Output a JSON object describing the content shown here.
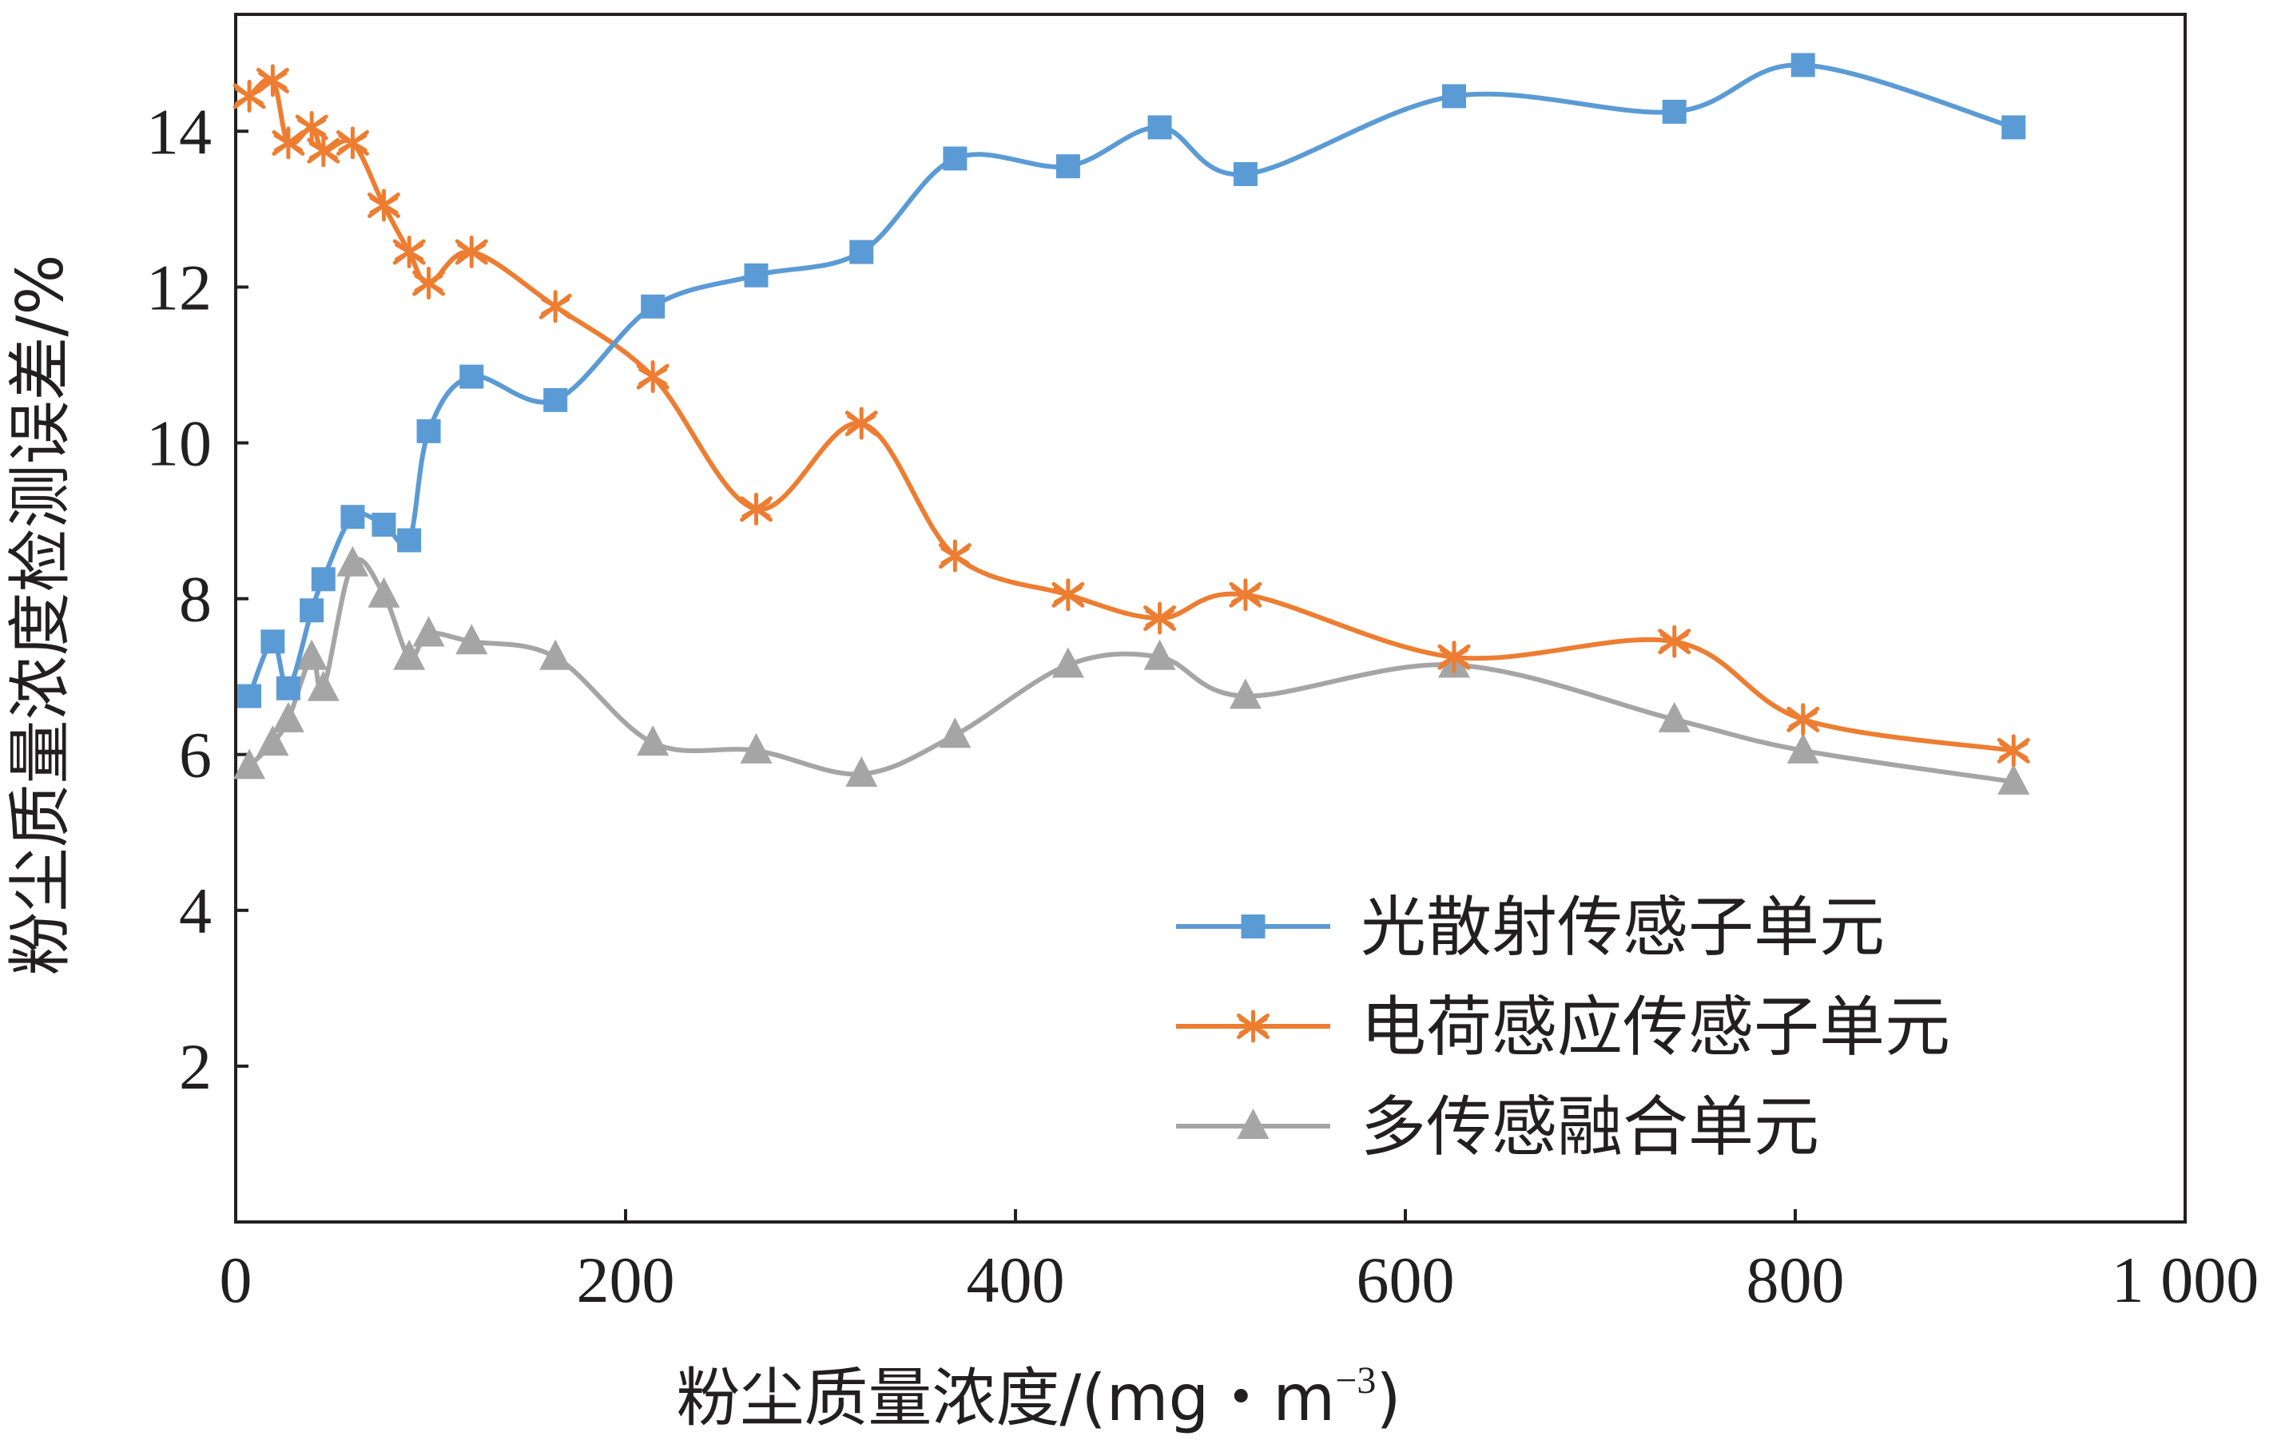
{
  "chart_data": {
    "type": "line",
    "xlabel": "粉尘质量浓度/(mg・m",
    "xlabel_sup": "−3",
    "xlabel_end": ")",
    "ylabel": "粉尘质量浓度检测误差/%",
    "xlim": [
      0,
      1000
    ],
    "ylim": [
      0,
      15.5
    ],
    "xticks": [
      0,
      200,
      400,
      600,
      800,
      1000
    ],
    "xtick_labels": [
      "0",
      "200",
      "400",
      "600",
      "800",
      "1 000"
    ],
    "yticks": [
      2,
      4,
      6,
      8,
      10,
      12,
      14
    ],
    "ytick_labels": [
      "2",
      "4",
      "6",
      "8",
      "10",
      "12",
      "14"
    ],
    "grid": false,
    "legend_position": "bottom-right",
    "series": [
      {
        "name": "光散射传感子单元",
        "color": "#5b9bd5",
        "marker": "square",
        "x": [
          7,
          19,
          27,
          39,
          45,
          60,
          76,
          89,
          99,
          121,
          164,
          214,
          267,
          321,
          369,
          427,
          474,
          518,
          625,
          738,
          804,
          912
        ],
        "y": [
          6.75,
          7.45,
          6.85,
          7.85,
          8.25,
          9.05,
          8.95,
          8.75,
          10.15,
          10.85,
          10.55,
          11.75,
          12.15,
          12.45,
          13.65,
          13.55,
          14.05,
          13.45,
          14.45,
          14.25,
          14.85,
          14.05
        ]
      },
      {
        "name": "电荷感应传感子单元",
        "color": "#ed7d31",
        "marker": "asterisk",
        "x": [
          7,
          19,
          27,
          39,
          45,
          60,
          76,
          89,
          99,
          121,
          164,
          214,
          267,
          321,
          369,
          427,
          474,
          518,
          625,
          738,
          804,
          912
        ],
        "y": [
          14.45,
          14.65,
          13.85,
          14.05,
          13.75,
          13.85,
          13.05,
          12.45,
          12.05,
          12.45,
          11.75,
          10.85,
          9.15,
          10.25,
          8.55,
          8.05,
          7.75,
          8.05,
          7.25,
          7.45,
          6.45,
          6.05
        ]
      },
      {
        "name": "多传感融合单元",
        "color": "#a5a5a5",
        "marker": "triangle",
        "x": [
          7,
          19,
          27,
          39,
          45,
          60,
          76,
          89,
          99,
          121,
          164,
          214,
          267,
          321,
          369,
          427,
          474,
          518,
          625,
          738,
          804,
          912
        ],
        "y": [
          5.85,
          6.15,
          6.45,
          7.25,
          6.85,
          8.45,
          8.05,
          7.25,
          7.55,
          7.45,
          7.25,
          6.15,
          6.05,
          5.75,
          6.25,
          7.15,
          7.25,
          6.75,
          7.15,
          6.45,
          6.05,
          5.65
        ]
      }
    ]
  }
}
